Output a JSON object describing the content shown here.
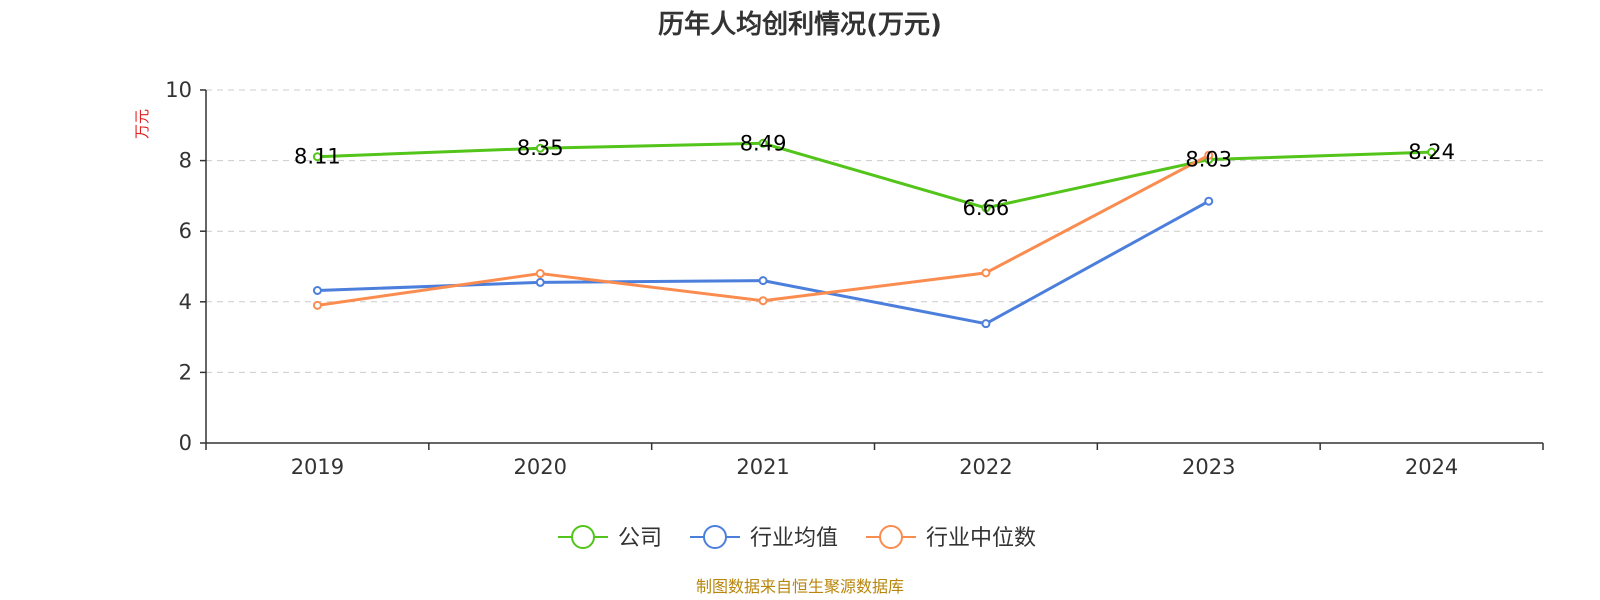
{
  "chart_data": {
    "type": "line",
    "title": "历年人均创利情况(万元)",
    "ylabel": "万元",
    "xlabel": "",
    "categories": [
      "2019",
      "2020",
      "2021",
      "2022",
      "2023",
      "2024"
    ],
    "ylim": [
      0,
      10
    ],
    "yticks": [
      0,
      2,
      4,
      6,
      8,
      10
    ],
    "grid": true,
    "legend_position": "bottom",
    "series": [
      {
        "name": "公司",
        "color": "#52c41a",
        "values": [
          8.11,
          8.35,
          8.49,
          6.66,
          8.03,
          8.24
        ],
        "labels": [
          "8.11",
          "8.35",
          "8.49",
          "6.66",
          "8.03",
          "8.24"
        ]
      },
      {
        "name": "行业均值",
        "color": "#4c7fdc",
        "values": [
          4.32,
          4.55,
          4.6,
          3.38,
          6.85,
          null
        ]
      },
      {
        "name": "行业中位数",
        "color": "#fa8c50",
        "values": [
          3.9,
          4.8,
          4.03,
          4.82,
          8.15,
          null
        ]
      }
    ]
  },
  "colors": {
    "axis": "#333333",
    "grid": "#cccccc",
    "ylabel": "#e02020",
    "source": "#b8860b"
  },
  "source": "制图数据来自恒生聚源数据库"
}
